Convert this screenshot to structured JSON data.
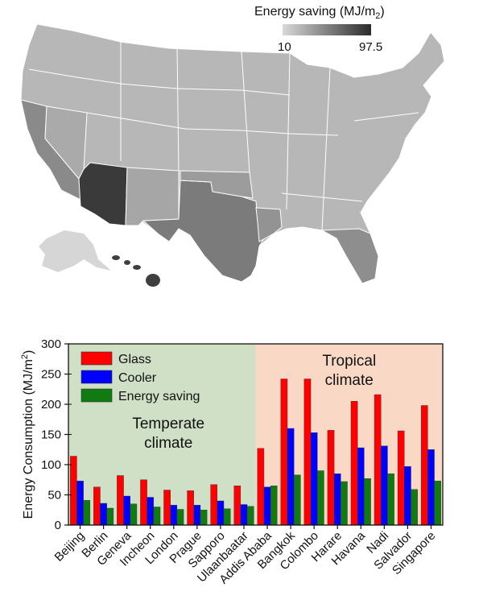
{
  "map": {
    "colorbar_title": "Energy saving (MJ/m",
    "colorbar_title_sub": "2",
    "colorbar_title_close": ")",
    "colorbar_min": "10",
    "colorbar_max": "97.5",
    "colorbar_colors": [
      "#d9d9d9",
      "#2b2b2b"
    ],
    "highlight_color": "#3a3a3a"
  },
  "chart_data": {
    "type": "bar",
    "ylabel": "Energy Consumption (MJ/m",
    "ylabel_sup": "2",
    "ylabel_close": ")",
    "ylim": [
      0,
      300
    ],
    "yticks": [
      "0",
      "50",
      "100",
      "150",
      "200",
      "250",
      "300"
    ],
    "categories": [
      "Beijing",
      "Berlin",
      "Geneva",
      "Incheon",
      "London",
      "Prague",
      "Sapporo",
      "Ulaanbaatar",
      "Addis Ababa",
      "Bangkok",
      "Colombo",
      "Harare",
      "Havana",
      "Nadi",
      "Salvador",
      "Singapore"
    ],
    "series": [
      {
        "name": "Glass",
        "color": "#ff0000",
        "values": [
          114,
          63,
          82,
          75,
          58,
          57,
          67,
          65,
          127,
          242,
          242,
          157,
          205,
          216,
          156,
          198
        ]
      },
      {
        "name": "Cooler",
        "color": "#0000ff",
        "values": [
          73,
          36,
          48,
          46,
          33,
          33,
          40,
          34,
          63,
          160,
          153,
          85,
          128,
          131,
          97,
          125
        ]
      },
      {
        "name": "Energy saving",
        "color": "#117a11",
        "values": [
          41,
          28,
          35,
          30,
          26,
          25,
          27,
          31,
          65,
          83,
          90,
          72,
          77,
          85,
          59,
          73
        ]
      }
    ],
    "regions": [
      {
        "label_line1": "Temperate",
        "label_line2": "climate",
        "color": "#cfe0c6",
        "from_category": 0,
        "to_category": 7
      },
      {
        "label_line1": "Tropical",
        "label_line2": "climate",
        "color": "#f9d9c6",
        "from_category": 8,
        "to_category": 15
      }
    ],
    "legend_position": "top-left"
  }
}
